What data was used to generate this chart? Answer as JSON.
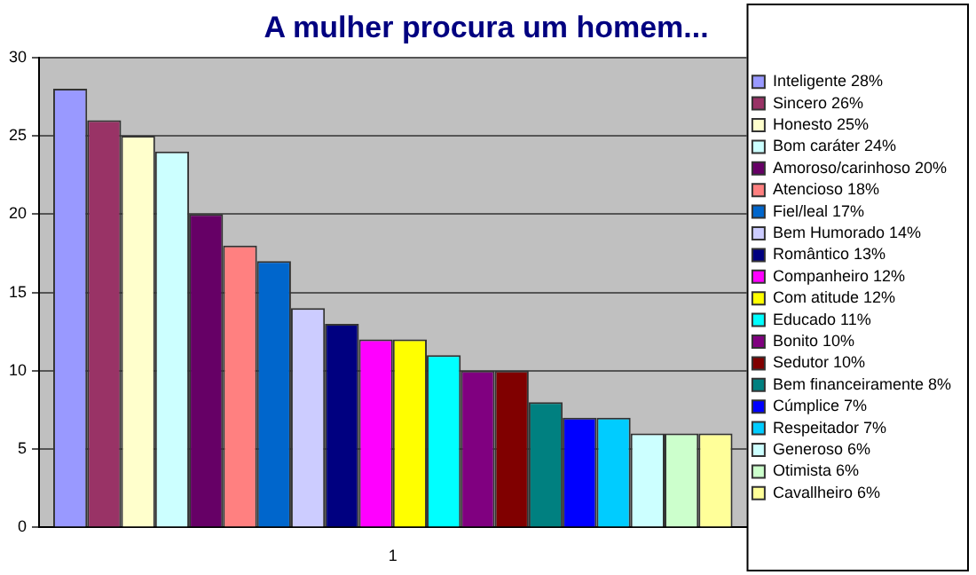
{
  "chart_data": {
    "type": "bar",
    "title": "A mulher procura um homem...",
    "categories": [
      "1"
    ],
    "series": [
      {
        "name": "Inteligente 28%",
        "color": "#9999ff",
        "values": [
          28
        ]
      },
      {
        "name": "Sincero 26%",
        "color": "#993366",
        "values": [
          26
        ]
      },
      {
        "name": "Honesto 25%",
        "color": "#ffffcc",
        "values": [
          25
        ]
      },
      {
        "name": "Bom caráter 24%",
        "color": "#ccffff",
        "values": [
          24
        ]
      },
      {
        "name": "Amoroso/carinhoso 20%",
        "color": "#660066",
        "values": [
          20
        ]
      },
      {
        "name": "Atencioso 18%",
        "color": "#ff8080",
        "values": [
          18
        ]
      },
      {
        "name": "Fiel/leal 17%",
        "color": "#0066cc",
        "values": [
          17
        ]
      },
      {
        "name": "Bem Humorado 14%",
        "color": "#ccccff",
        "values": [
          14
        ]
      },
      {
        "name": "Romântico 13%",
        "color": "#000080",
        "values": [
          13
        ]
      },
      {
        "name": "Companheiro 12%",
        "color": "#ff00ff",
        "values": [
          12
        ]
      },
      {
        "name": "Com atitude 12%",
        "color": "#ffff00",
        "values": [
          12
        ]
      },
      {
        "name": "Educado 11%",
        "color": "#00ffff",
        "values": [
          11
        ]
      },
      {
        "name": "Bonito 10%",
        "color": "#800080",
        "values": [
          10
        ]
      },
      {
        "name": "Sedutor 10%",
        "color": "#800000",
        "values": [
          10
        ]
      },
      {
        "name": "Bem financeiramente 8%",
        "color": "#008080",
        "values": [
          8
        ]
      },
      {
        "name": "Cúmplice 7%",
        "color": "#0000ff",
        "values": [
          7
        ]
      },
      {
        "name": "Respeitador 7%",
        "color": "#00ccff",
        "values": [
          7
        ]
      },
      {
        "name": "Generoso 6%",
        "color": "#ccffff",
        "values": [
          6
        ]
      },
      {
        "name": "Otimista 6%",
        "color": "#ccffcc",
        "values": [
          6
        ]
      },
      {
        "name": "Cavallheiro 6%",
        "color": "#ffff99",
        "values": [
          6
        ]
      }
    ],
    "ylim": [
      0,
      30
    ],
    "yticks": [
      0,
      5,
      10,
      15,
      20,
      25,
      30
    ],
    "grid": "y",
    "legend": "right"
  }
}
